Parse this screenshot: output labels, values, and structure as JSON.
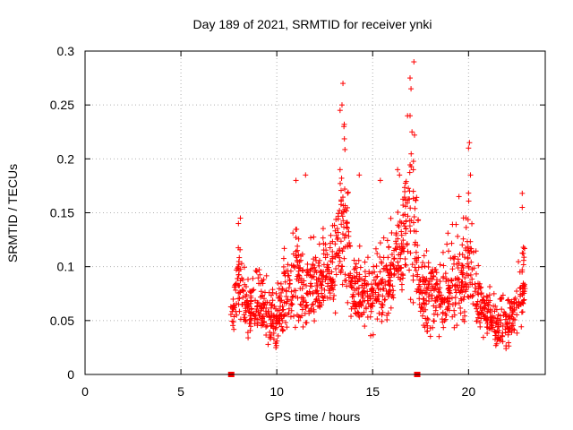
{
  "chart_data": {
    "type": "scatter",
    "title": "Day 189 of 2021, SRMTID for receiver ynki",
    "xlabel": "GPS time / hours",
    "ylabel": "SRMTID / TECUs",
    "xlim": [
      0,
      24
    ],
    "ylim": [
      0,
      0.3
    ],
    "xticks": [
      0,
      5,
      10,
      15,
      20
    ],
    "yticks": [
      0,
      0.05,
      0.1,
      0.15,
      0.2,
      0.25,
      0.3
    ],
    "xtick_labels": [
      "0",
      "5",
      "10",
      "15",
      "20"
    ],
    "ytick_labels": [
      "0",
      "0.05",
      "0.1",
      "0.15",
      "0.2",
      "0.25",
      "0.3"
    ],
    "grid": true,
    "marker": "+",
    "color": "#ff0000",
    "data_gap_markers_x": [
      7.6,
      17.3
    ],
    "envelope": [
      [
        7.6,
        0.03,
        0.08
      ],
      [
        8.0,
        0.05,
        0.14
      ],
      [
        8.5,
        0.03,
        0.1
      ],
      [
        9.0,
        0.03,
        0.12
      ],
      [
        9.5,
        0.02,
        0.11
      ],
      [
        10.0,
        0.02,
        0.1
      ],
      [
        10.5,
        0.03,
        0.14
      ],
      [
        11.0,
        0.03,
        0.18
      ],
      [
        11.5,
        0.03,
        0.14
      ],
      [
        12.0,
        0.04,
        0.14
      ],
      [
        12.5,
        0.05,
        0.15
      ],
      [
        13.0,
        0.05,
        0.16
      ],
      [
        13.3,
        0.06,
        0.25
      ],
      [
        13.5,
        0.06,
        0.27
      ],
      [
        13.8,
        0.04,
        0.18
      ],
      [
        14.0,
        0.04,
        0.14
      ],
      [
        14.5,
        0.04,
        0.13
      ],
      [
        15.0,
        0.03,
        0.13
      ],
      [
        15.5,
        0.04,
        0.15
      ],
      [
        16.0,
        0.05,
        0.15
      ],
      [
        16.5,
        0.07,
        0.19
      ],
      [
        16.9,
        0.06,
        0.27
      ],
      [
        17.1,
        0.05,
        0.29
      ],
      [
        17.5,
        0.04,
        0.14
      ],
      [
        18.0,
        0.03,
        0.12
      ],
      [
        18.5,
        0.03,
        0.13
      ],
      [
        19.0,
        0.03,
        0.15
      ],
      [
        19.5,
        0.03,
        0.16
      ],
      [
        20.0,
        0.03,
        0.21
      ],
      [
        20.5,
        0.03,
        0.11
      ],
      [
        21.0,
        0.03,
        0.09
      ],
      [
        21.5,
        0.02,
        0.08
      ],
      [
        22.0,
        0.02,
        0.08
      ],
      [
        22.5,
        0.03,
        0.1
      ],
      [
        22.9,
        0.04,
        0.16
      ]
    ],
    "sample_points": {
      "seed": 189,
      "count": 1500,
      "x_range": [
        7.6,
        22.95
      ]
    },
    "notable_points": [
      [
        13.45,
        0.27
      ],
      [
        13.4,
        0.25
      ],
      [
        13.3,
        0.245
      ],
      [
        13.5,
        0.23
      ],
      [
        13.3,
        0.19
      ],
      [
        17.15,
        0.29
      ],
      [
        16.95,
        0.275
      ],
      [
        17.0,
        0.265
      ],
      [
        16.95,
        0.24
      ],
      [
        17.05,
        0.225
      ],
      [
        20.05,
        0.215
      ],
      [
        20.0,
        0.21
      ],
      [
        20.1,
        0.185
      ],
      [
        16.3,
        0.19
      ],
      [
        16.4,
        0.185
      ],
      [
        14.3,
        0.185
      ],
      [
        15.4,
        0.18
      ],
      [
        11.5,
        0.185
      ],
      [
        11.0,
        0.18
      ],
      [
        22.8,
        0.168
      ],
      [
        22.8,
        0.155
      ],
      [
        19.5,
        0.165
      ],
      [
        8.1,
        0.145
      ],
      [
        8.0,
        0.14
      ]
    ]
  }
}
